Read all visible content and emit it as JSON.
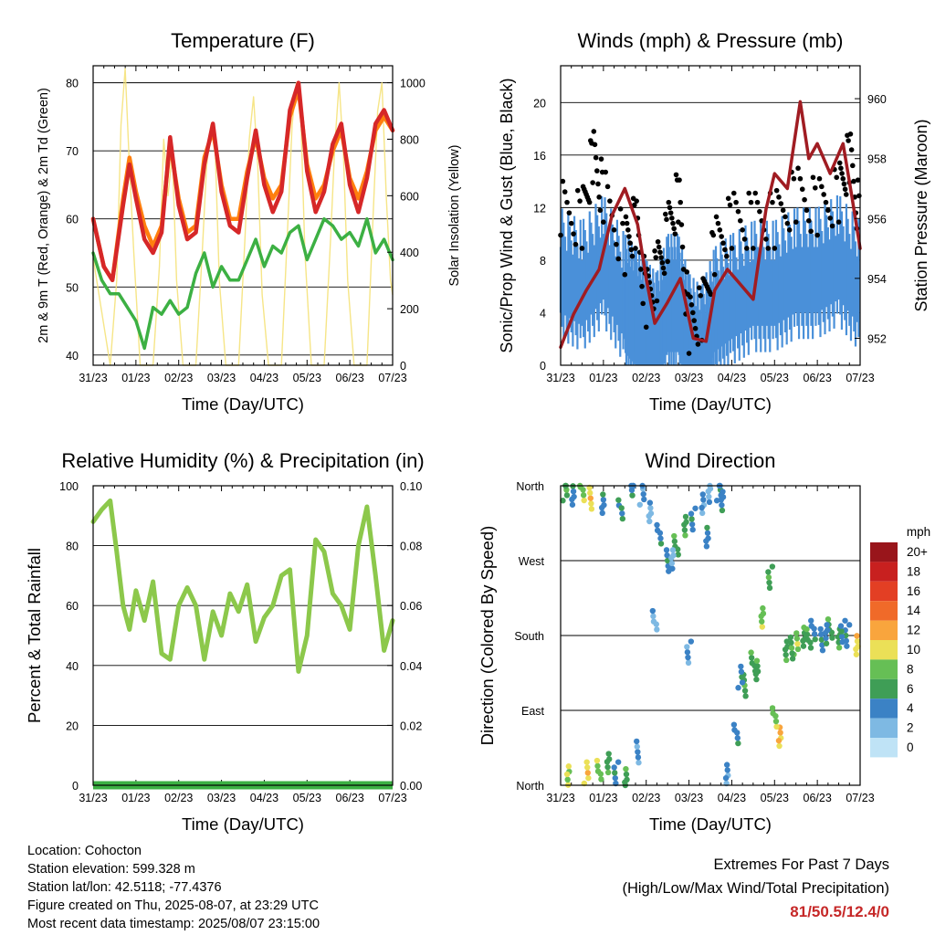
{
  "time_ticks": [
    "31/23",
    "01/23",
    "02/23",
    "03/23",
    "04/23",
    "05/23",
    "06/23",
    "07/23"
  ],
  "chart_data": [
    {
      "type": "line",
      "title": "Temperature (F)",
      "xlabel": "Time (Day/UTC)",
      "ylabel_left": "2m & 9m T (Red, Orange) & 2m Td (Green)",
      "ylabel_right": "Solar Insolation (Yellow)",
      "ylim_left": [
        38.5,
        82.5
      ],
      "ylim_right": [
        0,
        1060
      ],
      "yticks_left": [
        40,
        50,
        60,
        70,
        80
      ],
      "yticks_right": [
        0,
        200,
        400,
        600,
        800,
        1000
      ],
      "grid": true,
      "series": [
        {
          "name": "2m T",
          "color": "#d62728",
          "axis": "left",
          "x": [
            0,
            0.25,
            0.45,
            0.7,
            0.85,
            1.0,
            1.2,
            1.4,
            1.6,
            1.8,
            2.0,
            2.2,
            2.4,
            2.6,
            2.8,
            3.0,
            3.2,
            3.4,
            3.6,
            3.8,
            4.0,
            4.2,
            4.4,
            4.6,
            4.8,
            5.0,
            5.2,
            5.4,
            5.6,
            5.8,
            6.0,
            6.2,
            6.4,
            6.6,
            6.8,
            7.0
          ],
          "y": [
            60,
            53,
            51,
            62,
            68,
            63,
            57,
            55,
            58,
            72,
            62,
            57,
            58,
            68,
            74,
            64,
            59,
            58,
            66,
            73,
            65,
            61,
            64,
            76,
            80,
            67,
            61,
            64,
            71,
            74,
            65,
            61,
            66,
            74,
            76,
            73
          ]
        },
        {
          "name": "9m T",
          "color": "#ff7f0e",
          "axis": "left",
          "x": [
            0,
            0.25,
            0.45,
            0.7,
            0.85,
            1.0,
            1.2,
            1.4,
            1.6,
            1.8,
            2.0,
            2.2,
            2.4,
            2.6,
            2.8,
            3.0,
            3.2,
            3.4,
            3.6,
            3.8,
            4.0,
            4.2,
            4.4,
            4.6,
            4.8,
            5.0,
            5.2,
            5.4,
            5.6,
            5.8,
            6.0,
            6.2,
            6.4,
            6.6,
            6.8,
            7.0
          ],
          "y": [
            60,
            53,
            51,
            63,
            69,
            64,
            59,
            56,
            59,
            71,
            63,
            58,
            59,
            69,
            73,
            65,
            60,
            60,
            67,
            72,
            66,
            63,
            65,
            75,
            79,
            68,
            63,
            65,
            70,
            73,
            66,
            63,
            67,
            73,
            75,
            73
          ]
        },
        {
          "name": "2m Td",
          "color": "#3cb043",
          "axis": "left",
          "x": [
            0,
            0.2,
            0.4,
            0.6,
            0.8,
            1.0,
            1.2,
            1.4,
            1.6,
            1.8,
            2.0,
            2.2,
            2.4,
            2.6,
            2.8,
            3.0,
            3.2,
            3.4,
            3.6,
            3.8,
            4.0,
            4.2,
            4.4,
            4.6,
            4.8,
            5.0,
            5.2,
            5.4,
            5.6,
            5.8,
            6.0,
            6.2,
            6.4,
            6.6,
            6.8,
            7.0
          ],
          "y": [
            55,
            51,
            49,
            49,
            47,
            45,
            41,
            47,
            46,
            48,
            46,
            47,
            52,
            55,
            50,
            53,
            51,
            51,
            54,
            57,
            53,
            56,
            55,
            58,
            59,
            54,
            57,
            60,
            59,
            57,
            58,
            56,
            60,
            55,
            57,
            54
          ]
        },
        {
          "name": "Solar Insolation",
          "color": "#f5e27a",
          "axis": "right",
          "x": [
            0,
            0.4,
            0.55,
            0.65,
            0.75,
            0.85,
            0.95,
            1.1,
            1.4,
            1.55,
            1.65,
            1.75,
            1.85,
            1.95,
            2.1,
            2.4,
            2.55,
            2.65,
            2.75,
            2.85,
            2.95,
            3.1,
            3.4,
            3.55,
            3.65,
            3.75,
            3.85,
            3.95,
            4.1,
            4.4,
            4.55,
            4.65,
            4.75,
            4.85,
            4.95,
            5.1,
            5.4,
            5.55,
            5.65,
            5.75,
            5.85,
            5.95,
            6.1,
            6.4,
            6.55,
            6.65,
            6.75,
            6.85,
            6.95,
            7.0
          ],
          "y": [
            380,
            0,
            300,
            850,
            1050,
            700,
            400,
            0,
            0,
            350,
            800,
            600,
            750,
            300,
            0,
            0,
            400,
            700,
            850,
            780,
            300,
            0,
            0,
            450,
            800,
            950,
            700,
            250,
            0,
            0,
            500,
            850,
            1000,
            900,
            400,
            0,
            0,
            450,
            780,
            1000,
            750,
            300,
            0,
            0,
            550,
            900,
            1000,
            600,
            300,
            250
          ]
        }
      ]
    },
    {
      "type": "scatter",
      "title": "Winds (mph) & Pressure (mb)",
      "xlabel": "Time (Day/UTC)",
      "ylabel_left": "Sonic/Prop Wind & Gust (Blue, Black)",
      "ylabel_right": "Station Pressure (Maroon)",
      "ylim_left": [
        0,
        22.8
      ],
      "ylim_right": [
        951.1,
        961.1
      ],
      "yticks_left": [
        0,
        4,
        8,
        12,
        16,
        20
      ],
      "yticks_right": [
        952,
        954,
        956,
        958,
        960
      ],
      "grid": true,
      "series": [
        {
          "name": "Sonic/Prop Wind",
          "color": "#4a90d9",
          "style": "bars",
          "x": [
            0,
            0.5,
            1.0,
            1.5,
            1.75,
            2.0,
            2.25,
            2.5,
            2.75,
            3.0,
            3.3,
            3.6,
            4.0,
            4.5,
            5.0,
            5.5,
            6.0,
            6.5,
            7.0
          ],
          "y": [
            7,
            6,
            8,
            5,
            4,
            3,
            2,
            5,
            5,
            2,
            1,
            4,
            5,
            6,
            6,
            7,
            7,
            8,
            6
          ]
        },
        {
          "name": "Gust",
          "color": "#000000",
          "style": "points",
          "x": [
            0,
            0.5,
            0.75,
            1.0,
            1.5,
            1.75,
            2.0,
            2.25,
            2.5,
            2.75,
            3.0,
            3.3,
            3.6,
            4.0,
            4.5,
            5.0,
            5.5,
            6.0,
            6.5,
            6.75,
            7.0
          ],
          "y": [
            12,
            11,
            16,
            13,
            9,
            11,
            5,
            7,
            10,
            13,
            3,
            4,
            9,
            11,
            11,
            11,
            13,
            12,
            13,
            16,
            11
          ]
        },
        {
          "name": "Station Pressure",
          "color": "#a01c22",
          "style": "line",
          "x": [
            0,
            0.3,
            0.6,
            0.9,
            1.2,
            1.5,
            1.8,
            2.0,
            2.2,
            2.5,
            2.8,
            3.1,
            3.4,
            3.6,
            3.9,
            4.2,
            4.5,
            4.8,
            5.0,
            5.3,
            5.6,
            5.8,
            6.0,
            6.3,
            6.6,
            6.8,
            7.0
          ],
          "y": [
            951.7,
            952.8,
            953.6,
            954.3,
            956.1,
            957.0,
            955.8,
            954.0,
            952.5,
            953.2,
            954.0,
            952.0,
            951.9,
            953.6,
            954.3,
            953.8,
            953.3,
            956.3,
            957.5,
            957.0,
            959.9,
            958.0,
            958.5,
            957.5,
            958.5,
            956.8,
            955.0
          ]
        }
      ]
    },
    {
      "type": "line",
      "title": "Relative Humidity (%) & Precipitation (in)",
      "xlabel": "Time (Day/UTC)",
      "ylabel_left": "Percent & Total Rainfall",
      "ylim_left": [
        0,
        100
      ],
      "ylim_right": [
        0,
        0.1
      ],
      "yticks_left": [
        0,
        20,
        40,
        60,
        80,
        100
      ],
      "yticks_right": [
        "0.00",
        "0.02",
        "0.04",
        "0.06",
        "0.08",
        "0.10"
      ],
      "grid": true,
      "series": [
        {
          "name": "Relative Humidity",
          "color": "#8cc84b",
          "axis": "left",
          "x": [
            0,
            0.2,
            0.4,
            0.55,
            0.7,
            0.85,
            1.0,
            1.2,
            1.4,
            1.6,
            1.8,
            2.0,
            2.2,
            2.4,
            2.6,
            2.8,
            3.0,
            3.2,
            3.4,
            3.6,
            3.8,
            4.0,
            4.2,
            4.4,
            4.6,
            4.8,
            5.0,
            5.2,
            5.4,
            5.6,
            5.8,
            6.0,
            6.2,
            6.4,
            6.6,
            6.8,
            7.0
          ],
          "y": [
            88,
            92,
            95,
            78,
            60,
            52,
            65,
            55,
            68,
            44,
            42,
            60,
            66,
            60,
            42,
            58,
            50,
            64,
            58,
            67,
            48,
            56,
            60,
            70,
            72,
            38,
            50,
            82,
            78,
            64,
            60,
            52,
            80,
            93,
            70,
            45,
            55
          ]
        },
        {
          "name": "Precipitation",
          "color": "#3cb043",
          "axis": "right",
          "x": [
            0,
            7
          ],
          "y": [
            0,
            0
          ]
        }
      ]
    },
    {
      "type": "scatter",
      "title": "Wind Direction",
      "xlabel": "Time (Day/UTC)",
      "ylabel_left": "Direction (Colored By Speed)",
      "yticks_left": [
        "North",
        "East",
        "South",
        "West",
        "North"
      ],
      "ylim_left": [
        0,
        360
      ],
      "legend_title": "mph",
      "legend_labels": [
        "20+",
        "18",
        "16",
        "14",
        "12",
        "10",
        "8",
        "6",
        "4",
        "2",
        "0"
      ],
      "legend_colors": [
        "#99151b",
        "#c8201f",
        "#e33f24",
        "#f06a29",
        "#f9a53d",
        "#ebe057",
        "#66bf55",
        "#3f9e56",
        "#3b82c5",
        "#7eb9e3",
        "#bfe3f6"
      ],
      "series": [
        {
          "name": "Direction",
          "x": [
            0.1,
            0.3,
            0.5,
            0.7,
            0.9,
            1.1,
            1.3,
            1.5,
            1.7,
            1.9,
            2.1,
            2.3,
            2.5,
            2.7,
            2.9,
            3.1,
            3.3,
            3.5,
            3.7,
            3.9,
            4.1,
            4.3,
            4.5,
            4.7,
            4.9,
            5.1,
            5.3,
            5.5,
            5.7,
            5.9,
            6.1,
            6.3,
            6.5,
            6.7,
            6.9,
            0.2,
            0.6,
            1.0,
            1.4,
            1.8,
            2.2,
            2.6,
            3.0,
            3.4,
            3.8,
            4.2,
            4.6,
            5.0,
            5.4,
            5.8,
            6.2,
            6.6
          ],
          "y": [
            355,
            350,
            352,
            345,
            20,
            25,
            15,
            10,
            358,
            350,
            330,
            300,
            270,
            290,
            310,
            320,
            340,
            350,
            355,
            15,
            60,
            120,
            150,
            200,
            250,
            60,
            160,
            170,
            180,
            185,
            175,
            190,
            175,
            180,
            170,
            10,
            15,
            340,
            330,
            40,
            200,
            270,
            160,
            300,
            340,
            130,
            140,
            80,
            165,
            178,
            180,
            185
          ],
          "speed": [
            6,
            4,
            8,
            10,
            8,
            6,
            4,
            6,
            4,
            3,
            2,
            4,
            4,
            6,
            6,
            4,
            3,
            2,
            4,
            3,
            4,
            6,
            6,
            8,
            6,
            11,
            6,
            8,
            6,
            4,
            4,
            6,
            6,
            4,
            10,
            9,
            10,
            4,
            5,
            3,
            2,
            2,
            3,
            4,
            4,
            4,
            6,
            8,
            6,
            6,
            4,
            4
          ]
        }
      ]
    }
  ],
  "info": {
    "location": "Location: Cohocton",
    "elevation": "Station elevation: 599.328 m",
    "latlon": "Station lat/lon: 42.5118; -77.4376",
    "created": "Figure created on Thu, 2025-08-07, at 23:29 UTC",
    "recent": "Most recent data timestamp: 2025/08/07 23:15:00"
  },
  "extremes": {
    "title": "Extremes For Past 7 Days",
    "subtitle": "(High/Low/Max Wind/Total Precipitation)",
    "values": "81/50.5/12.4/0"
  }
}
